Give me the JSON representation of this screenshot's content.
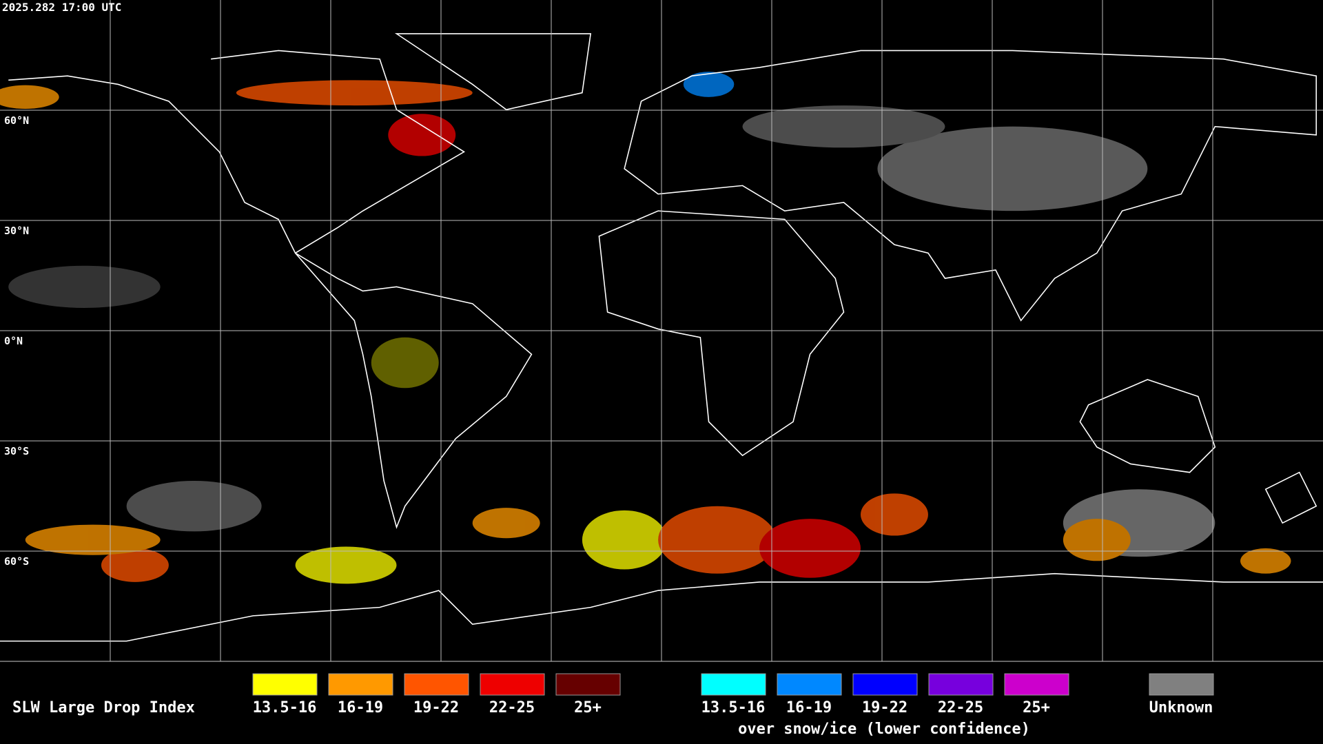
{
  "timestamp": "2025.282 17:00 UTC",
  "grid_labels": [
    "60°N",
    "30°N",
    "0°N",
    "30°S",
    "60°S"
  ],
  "legend": {
    "title": "SLW Large Drop Index",
    "groups": [
      {
        "items": [
          {
            "label": "13.5-16",
            "color": "#ffff00"
          },
          {
            "label": "16-19",
            "color": "#ff9900"
          },
          {
            "label": "19-22",
            "color": "#ff5500"
          },
          {
            "label": "22-25",
            "color": "#ee0000"
          },
          {
            "label": "25+",
            "color": "#660000"
          }
        ]
      },
      {
        "items": [
          {
            "label": "13.5-16",
            "color": "#00ffff"
          },
          {
            "label": "16-19",
            "color": "#0088ff"
          },
          {
            "label": "19-22",
            "color": "#0000ff"
          },
          {
            "label": "22-25",
            "color": "#7700dd"
          },
          {
            "label": "25+",
            "color": "#cc00cc"
          }
        ],
        "caption": "over snow/ice (lower confidence)"
      }
    ],
    "unknown": {
      "label": "Unknown",
      "color": "#808080"
    }
  }
}
